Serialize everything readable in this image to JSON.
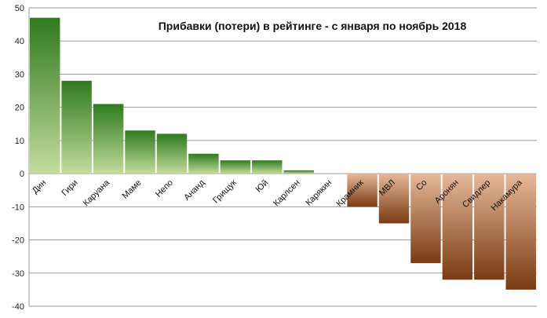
{
  "chart_data": {
    "type": "bar",
    "title": "Прибавки (потери) в рейтинге  -  с января по ноябрь 2018",
    "xlabel": "",
    "ylabel": "",
    "ylim": [
      -40,
      50
    ],
    "yticks": [
      50,
      40,
      30,
      20,
      10,
      0,
      -10,
      -20,
      -30,
      -40
    ],
    "categories": [
      "Дин",
      "Гири",
      "Каруана",
      "Маме",
      "Непо",
      "Ананд",
      "Грищук",
      "Юй",
      "Карлсен",
      "Карякин",
      "Крамник",
      "МВЛ",
      "Со",
      "Аронян",
      "Свидлер",
      "Накамура"
    ],
    "values": [
      47,
      28,
      21,
      13,
      12,
      6,
      4,
      4,
      1,
      0,
      -10,
      -15,
      -27,
      -32,
      -32,
      -35
    ],
    "grid": true,
    "legend": "none",
    "colors": {
      "positive_top": "#2f7a1f",
      "positive_bottom": "#c3dc9c",
      "negative_top": "#e6b89a",
      "negative_bottom": "#7a3b12",
      "gridline": "#9a9a9a",
      "axis": "#9a9a9a"
    }
  }
}
